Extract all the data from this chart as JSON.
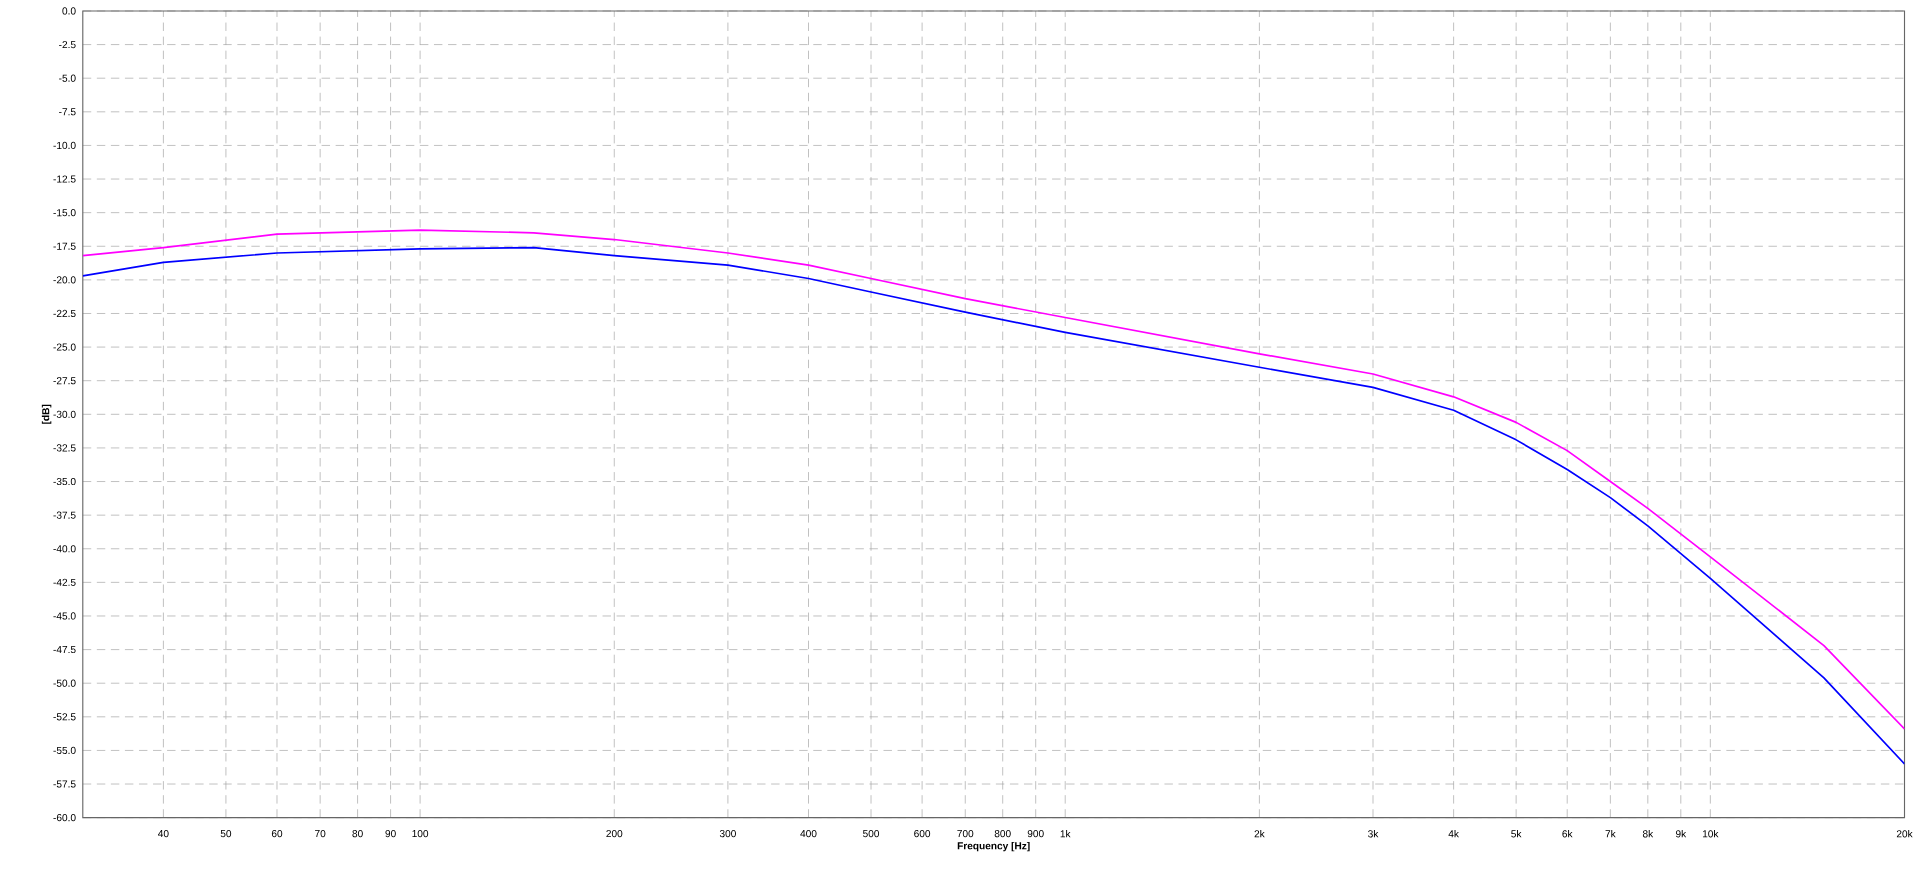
{
  "chart_data": {
    "type": "line",
    "xlabel": "Frequency [Hz]",
    "ylabel": "[dB]",
    "log": "x",
    "grid": true,
    "marker": "none",
    "line_style": "solid",
    "xlim": [
      30,
      20000
    ],
    "ylim": [
      -60,
      0
    ],
    "xticks": [
      40,
      50,
      60,
      70,
      80,
      90,
      100,
      200,
      300,
      400,
      500,
      600,
      700,
      800,
      900,
      {
        "value": 1000,
        "label": "1k"
      },
      {
        "value": 2000,
        "label": "2k"
      },
      {
        "value": 3000,
        "label": "3k"
      },
      {
        "value": 4000,
        "label": "4k"
      },
      {
        "value": 5000,
        "label": "5k"
      },
      {
        "value": 6000,
        "label": "6k"
      },
      {
        "value": 7000,
        "label": "7k"
      },
      {
        "value": 8000,
        "label": "8k"
      },
      {
        "value": 9000,
        "label": "9k"
      },
      {
        "value": 10000,
        "label": "10k"
      },
      {
        "value": 20000,
        "label": "20k"
      }
    ],
    "yticks": [
      {
        "value": 0,
        "label": "0.0"
      },
      {
        "value": -2.5,
        "label": "-2.5"
      },
      {
        "value": -5,
        "label": "-5.0"
      },
      {
        "value": -7.5,
        "label": "-7.5"
      },
      {
        "value": -10,
        "label": "-10.0"
      },
      {
        "value": -12.5,
        "label": "-12.5"
      },
      {
        "value": -15,
        "label": "-15.0"
      },
      {
        "value": -17.5,
        "label": "-17.5"
      },
      {
        "value": -20,
        "label": "-20.0"
      },
      {
        "value": -22.5,
        "label": "-22.5"
      },
      {
        "value": -25,
        "label": "-25.0"
      },
      {
        "value": -27.5,
        "label": "-27.5"
      },
      {
        "value": -30,
        "label": "-30.0"
      },
      {
        "value": -32.5,
        "label": "-32.5"
      },
      {
        "value": -35,
        "label": "-35.0"
      },
      {
        "value": -37.5,
        "label": "-37.5"
      },
      {
        "value": -40,
        "label": "-40.0"
      },
      {
        "value": -42.5,
        "label": "-42.5"
      },
      {
        "value": -45,
        "label": "-45.0"
      },
      {
        "value": -47.5,
        "label": "-47.5"
      },
      {
        "value": -50,
        "label": "-50.0"
      },
      {
        "value": -52.5,
        "label": "-52.5"
      },
      {
        "value": -55,
        "label": "-55.0"
      },
      {
        "value": -57.5,
        "label": "-57.5"
      },
      {
        "value": -60,
        "label": "-60.0"
      }
    ],
    "x": [
      30,
      40,
      60,
      100,
      150,
      200,
      300,
      400,
      500,
      700,
      1000,
      2000,
      3000,
      4000,
      5000,
      6000,
      7000,
      8000,
      10000,
      15000,
      20000
    ],
    "series": [
      {
        "color": "#ff00ff",
        "values": [
          -18.2,
          -17.6,
          -16.6,
          -16.3,
          -16.5,
          -17.0,
          -18.0,
          -18.9,
          -19.9,
          -21.4,
          -22.8,
          -25.5,
          -27.0,
          -28.7,
          -30.6,
          -32.7,
          -35.0,
          -37.0,
          -40.6,
          -47.2,
          -53.4
        ]
      },
      {
        "color": "#0000ff",
        "values": [
          -19.7,
          -18.7,
          -18.0,
          -17.7,
          -17.6,
          -18.2,
          -18.9,
          -19.9,
          -20.9,
          -22.4,
          -23.9,
          -26.5,
          -28.0,
          -29.7,
          -31.9,
          -34.1,
          -36.2,
          -38.3,
          -42.2,
          -49.6,
          -56.0
        ]
      }
    ]
  }
}
